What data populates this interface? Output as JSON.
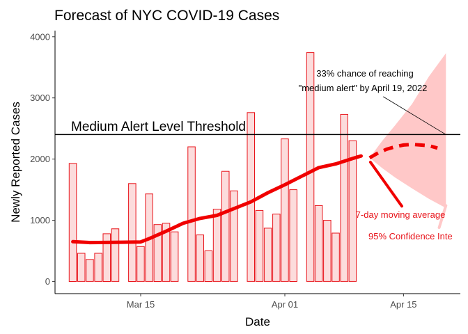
{
  "chart_data": {
    "type": "bar",
    "title": "Forecast of NYC COVID-19 Cases",
    "xlabel": "Date",
    "ylabel": "Newly Reported Cases",
    "ylim": [
      -200,
      4100
    ],
    "yticks": [
      0,
      1000,
      2000,
      3000,
      4000
    ],
    "xticks": [
      {
        "day": 15,
        "label": "Mar 15"
      },
      {
        "day": 32,
        "label": "Apr 01"
      },
      {
        "day": 46,
        "label": "Apr 15"
      }
    ],
    "x_day_range": [
      4.9,
      52.7
    ],
    "grid": false,
    "bars": [
      {
        "day": 7,
        "value": 1930
      },
      {
        "day": 8,
        "value": 460
      },
      {
        "day": 9,
        "value": 360
      },
      {
        "day": 10,
        "value": 460
      },
      {
        "day": 11,
        "value": 780
      },
      {
        "day": 12,
        "value": 860
      },
      {
        "day": 14,
        "value": 1600
      },
      {
        "day": 15,
        "value": 570
      },
      {
        "day": 16,
        "value": 1430
      },
      {
        "day": 17,
        "value": 930
      },
      {
        "day": 18,
        "value": 950
      },
      {
        "day": 19,
        "value": 810
      },
      {
        "day": 21,
        "value": 2200
      },
      {
        "day": 22,
        "value": 760
      },
      {
        "day": 23,
        "value": 500
      },
      {
        "day": 24,
        "value": 1180
      },
      {
        "day": 25,
        "value": 1800
      },
      {
        "day": 26,
        "value": 1480
      },
      {
        "day": 28,
        "value": 2760
      },
      {
        "day": 29,
        "value": 1160
      },
      {
        "day": 30,
        "value": 870
      },
      {
        "day": 31,
        "value": 1100
      },
      {
        "day": 32,
        "value": 2330
      },
      {
        "day": 33,
        "value": 1500
      },
      {
        "day": 35,
        "value": 3740
      },
      {
        "day": 36,
        "value": 1240
      },
      {
        "day": 37,
        "value": 1000
      },
      {
        "day": 38,
        "value": 790
      },
      {
        "day": 39,
        "value": 2730
      },
      {
        "day": 40,
        "value": 2300
      }
    ],
    "moving_average": [
      {
        "day": 7,
        "value": 650
      },
      {
        "day": 9,
        "value": 635
      },
      {
        "day": 12,
        "value": 640
      },
      {
        "day": 15,
        "value": 645
      },
      {
        "day": 16,
        "value": 700
      },
      {
        "day": 18,
        "value": 820
      },
      {
        "day": 20,
        "value": 950
      },
      {
        "day": 22,
        "value": 1030
      },
      {
        "day": 24,
        "value": 1080
      },
      {
        "day": 26,
        "value": 1190
      },
      {
        "day": 28,
        "value": 1300
      },
      {
        "day": 30,
        "value": 1450
      },
      {
        "day": 32,
        "value": 1580
      },
      {
        "day": 34,
        "value": 1720
      },
      {
        "day": 36,
        "value": 1860
      },
      {
        "day": 38,
        "value": 1920
      },
      {
        "day": 40,
        "value": 2010
      },
      {
        "day": 41,
        "value": 2050
      }
    ],
    "forecast": [
      {
        "day": 42,
        "value": 2020
      },
      {
        "day": 43,
        "value": 2100
      },
      {
        "day": 44,
        "value": 2160
      },
      {
        "day": 45,
        "value": 2200
      },
      {
        "day": 46,
        "value": 2230
      },
      {
        "day": 47,
        "value": 2240
      },
      {
        "day": 48,
        "value": 2230
      },
      {
        "day": 49,
        "value": 2220
      },
      {
        "day": 50,
        "value": 2180
      }
    ],
    "confidence_band": [
      {
        "day": 42,
        "lower": 2020,
        "upper": 2020
      },
      {
        "day": 43.5,
        "lower": 1850,
        "upper": 2300
      },
      {
        "day": 45,
        "lower": 1700,
        "upper": 2550
      },
      {
        "day": 47,
        "lower": 1520,
        "upper": 2900
      },
      {
        "day": 49,
        "lower": 1350,
        "upper": 3350
      },
      {
        "day": 51,
        "lower": 1200,
        "upper": 3730
      }
    ],
    "threshold": {
      "value": 2400,
      "label": "Medium Alert Level Threshold"
    },
    "annotations": {
      "chance_line1": "33% chance of reaching",
      "chance_line2": "\"medium alert\" by April 19, 2022",
      "chance_pointer": {
        "from_day": 43.6,
        "from_value": 3020,
        "to_day": 51,
        "to_value": 2400
      },
      "ma_label": "7-day moving average",
      "ma_pointer": {
        "from_day": 45.8,
        "from_value": 1230,
        "to_day": 42.1,
        "to_value": 1950
      },
      "ci_label": "95% Confidence Inte",
      "ci_pointer": {
        "from_day": 50.2,
        "from_value": 880,
        "to_day": 51,
        "to_value": 1240
      }
    },
    "colors": {
      "bar_fill": "#fcdcdc",
      "bar_stroke": "#e8141b",
      "line": "#f00000",
      "band": "#ffc8c8",
      "threshold": "#000000",
      "axis": "#000000",
      "tick_text": "#4d4d4d"
    }
  }
}
